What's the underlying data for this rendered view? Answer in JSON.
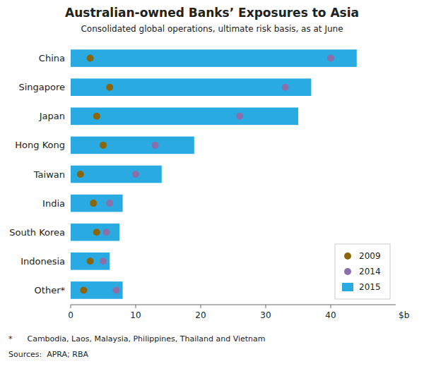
{
  "chart_data": {
    "type": "bar",
    "orientation": "horizontal",
    "title": "Australian-owned Banks’ Exposures to Asia",
    "subtitle": "Consolidated global operations, ultimate risk basis, as at June",
    "categories": [
      "China",
      "Singapore",
      "Japan",
      "Hong Kong",
      "Taiwan",
      "India",
      "South Korea",
      "Indonesia",
      "Other*"
    ],
    "series": [
      {
        "name": "2009",
        "type": "scatter",
        "marker": "circle",
        "color": "#8B6508",
        "values": [
          3,
          6,
          4,
          5,
          1.5,
          3.5,
          4,
          3,
          2
        ]
      },
      {
        "name": "2014",
        "type": "scatter",
        "marker": "circle",
        "color": "#8B6FAA",
        "values": [
          40,
          33,
          26,
          13,
          10,
          6,
          5.5,
          5,
          7
        ]
      },
      {
        "name": "2015",
        "type": "bar",
        "color": "#29ABE2",
        "values": [
          44,
          37,
          35,
          19,
          14,
          8,
          7.5,
          6,
          8
        ]
      }
    ],
    "xlim": [
      0,
      50
    ],
    "xticks": [
      0,
      10,
      20,
      30,
      40
    ],
    "xlabel": "$b",
    "legend": "lower right",
    "grid": false,
    "annotations": [
      "*      Cambodia, Laos, Malaysia, Philippines, Thailand and Vietnam",
      "Sources:  APRA; RBA"
    ]
  }
}
